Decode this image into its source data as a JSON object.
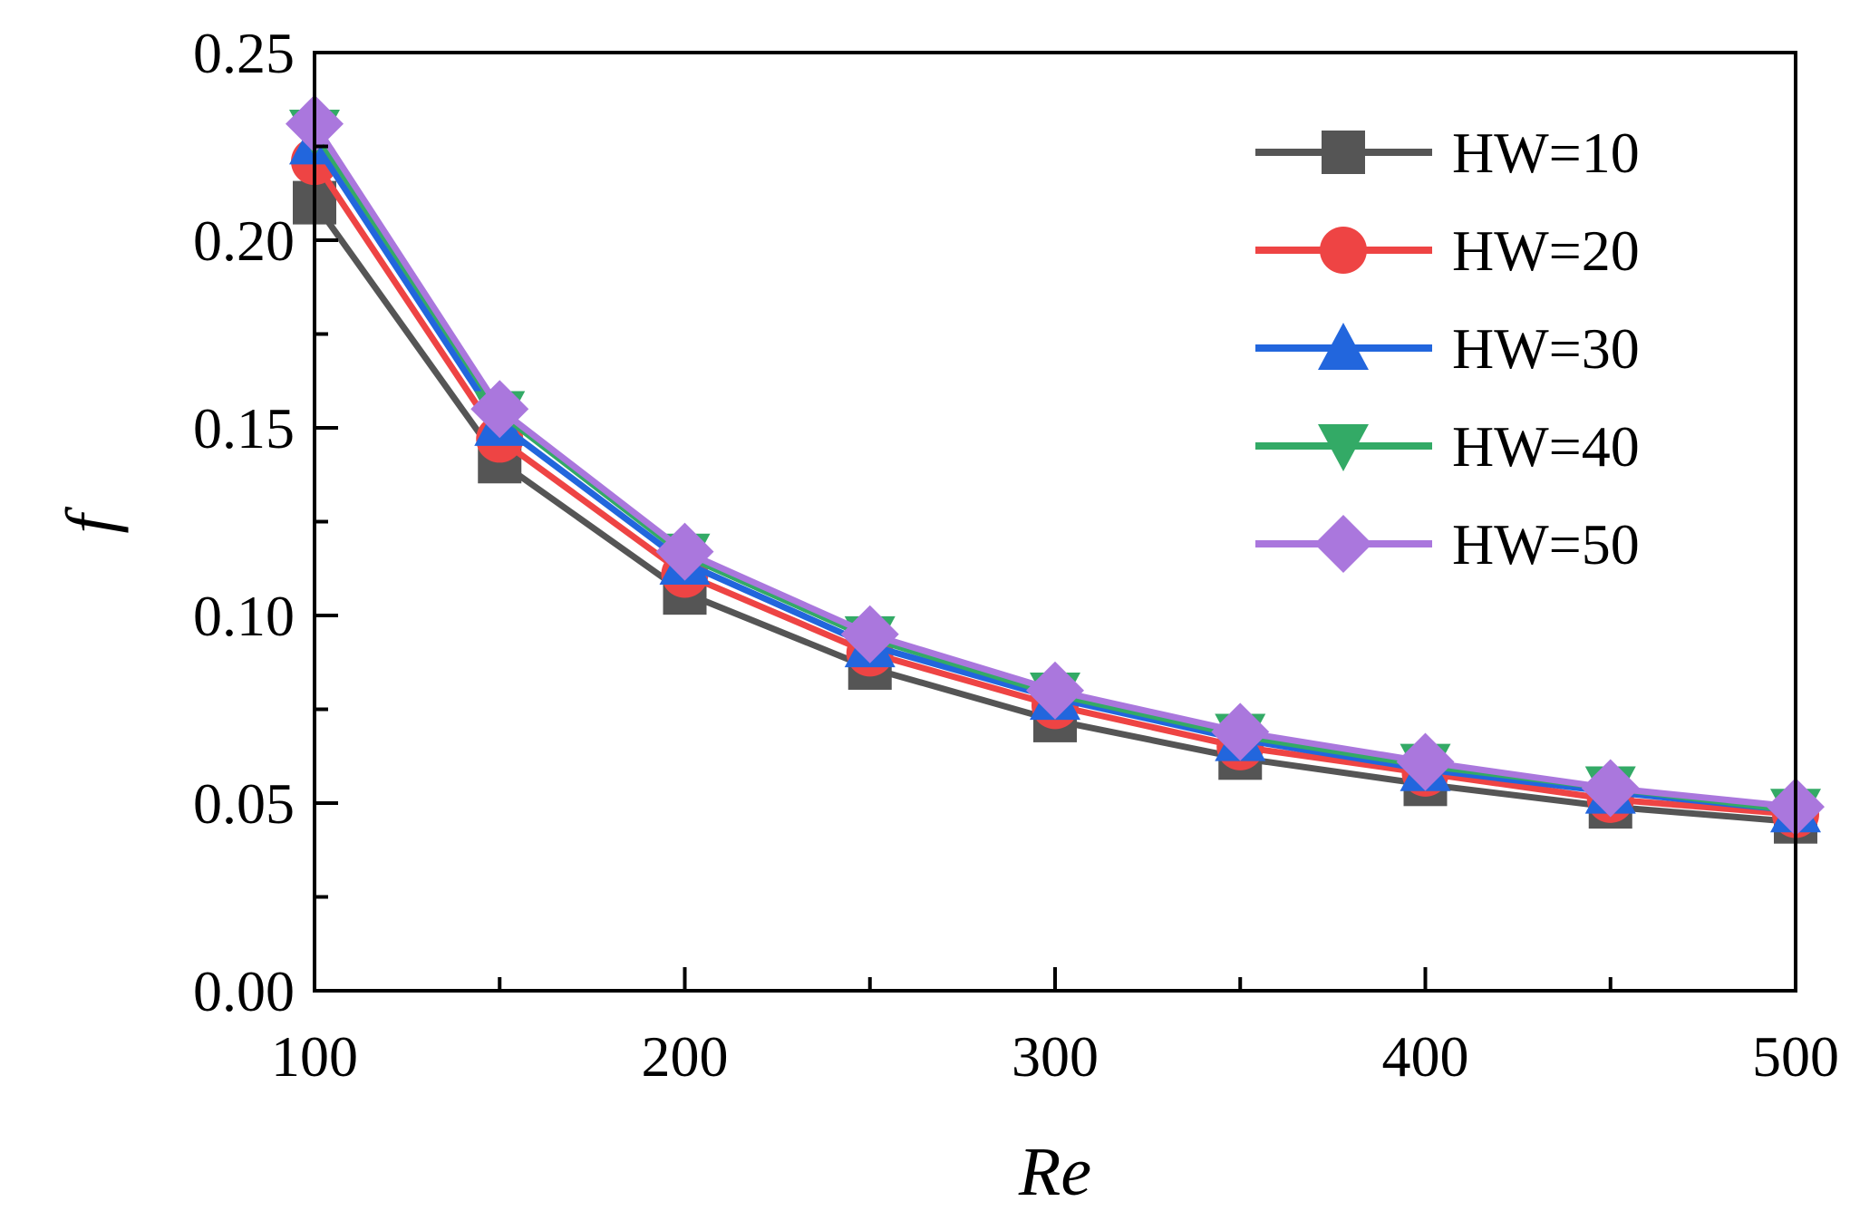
{
  "chart_data": {
    "type": "line",
    "title": "",
    "xlabel": "Re",
    "ylabel": "f",
    "xlim": [
      100,
      500
    ],
    "ylim": [
      0.0,
      0.25
    ],
    "x": [
      100,
      150,
      200,
      250,
      300,
      350,
      400,
      450,
      500
    ],
    "x_ticks": [
      100,
      200,
      300,
      400,
      500
    ],
    "x_tick_labels": [
      "100",
      "200",
      "300",
      "400",
      "500"
    ],
    "y_ticks": [
      0.0,
      0.05,
      0.1,
      0.15,
      0.2,
      0.25
    ],
    "y_tick_labels": [
      "0.00",
      "0.05",
      "0.10",
      "0.15",
      "0.20",
      "0.25"
    ],
    "grid": false,
    "legend_position": "top-right",
    "series": [
      {
        "name": "HW=10",
        "color": "#555555",
        "marker": "square",
        "values": [
          0.21,
          0.141,
          0.106,
          0.086,
          0.072,
          0.062,
          0.055,
          0.049,
          0.045
        ]
      },
      {
        "name": "HW=20",
        "color": "#ee4444",
        "marker": "circle",
        "values": [
          0.221,
          0.147,
          0.111,
          0.09,
          0.076,
          0.065,
          0.058,
          0.051,
          0.047
        ]
      },
      {
        "name": "HW=30",
        "color": "#2266dd",
        "marker": "triangle-up",
        "values": [
          0.226,
          0.151,
          0.114,
          0.092,
          0.078,
          0.067,
          0.059,
          0.053,
          0.048
        ]
      },
      {
        "name": "HW=40",
        "color": "#33aa66",
        "marker": "triangle-down",
        "values": [
          0.229,
          0.154,
          0.116,
          0.094,
          0.079,
          0.068,
          0.06,
          0.054,
          0.048
        ]
      },
      {
        "name": "HW=50",
        "color": "#aa77dd",
        "marker": "diamond",
        "values": [
          0.231,
          0.155,
          0.117,
          0.095,
          0.08,
          0.069,
          0.061,
          0.054,
          0.049
        ]
      }
    ]
  }
}
